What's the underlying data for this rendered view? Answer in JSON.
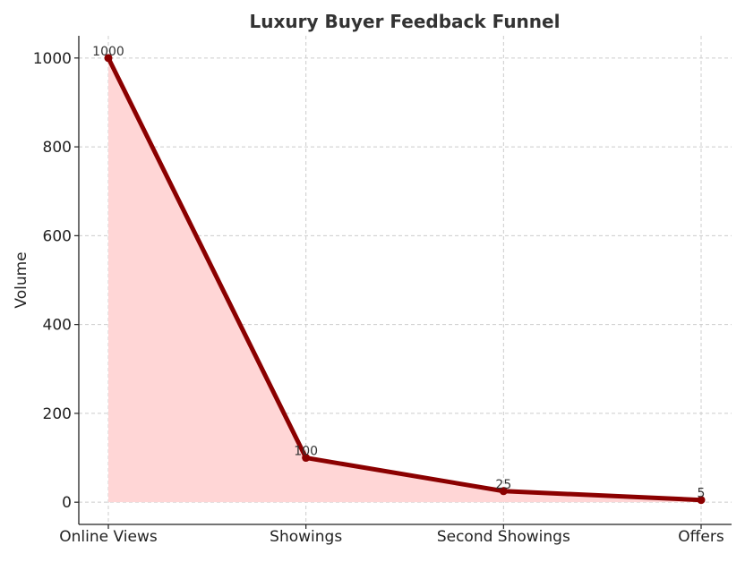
{
  "chart_data": {
    "type": "area",
    "title": "Luxury Buyer Feedback Funnel",
    "xlabel": "",
    "ylabel": "Volume",
    "categories": [
      "Online Views",
      "Showings",
      "Second Showings",
      "Offers"
    ],
    "series": [
      {
        "values": [
          1000,
          100,
          25,
          5
        ],
        "line_color": "#8b0000",
        "fill_color": "#ffd6d6"
      }
    ],
    "data_labels": [
      "1000",
      "100",
      "25",
      "5"
    ],
    "ylim": [
      -50,
      1050
    ],
    "yticks": [
      0,
      200,
      400,
      600,
      800,
      1000
    ],
    "grid": true,
    "legend": "none"
  }
}
